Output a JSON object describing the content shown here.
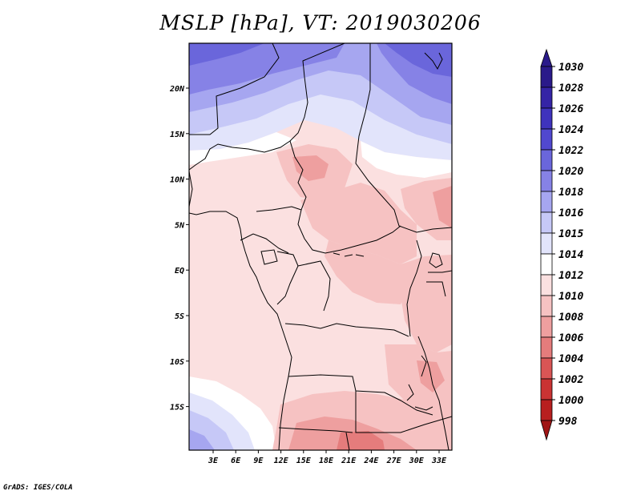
{
  "title": "MSLP [hPa], VT: 2019030206",
  "credit": "GrADS: IGES/COLA",
  "map": {
    "variable": "MSLP",
    "units": "hPa",
    "valid_time": "2019030206",
    "lon_labels": [
      "3E",
      "6E",
      "9E",
      "12E",
      "15E",
      "18E",
      "21E",
      "24E",
      "27E",
      "30E",
      "33E"
    ],
    "lat_labels": [
      "20N",
      "15N",
      "10N",
      "5N",
      "EQ",
      "5S",
      "10S",
      "15S"
    ]
  },
  "colorbar": {
    "levels": [
      {
        "label": "1030",
        "color": "#2a1a8a"
      },
      {
        "label": "1028",
        "color": "#3524a6"
      },
      {
        "label": "1026",
        "color": "#3f33bd"
      },
      {
        "label": "1024",
        "color": "#5148cf"
      },
      {
        "label": "1022",
        "color": "#6a66db"
      },
      {
        "label": "1020",
        "color": "#8682e6"
      },
      {
        "label": "1018",
        "color": "#a6a6f0"
      },
      {
        "label": "1016",
        "color": "#c6c8f7"
      },
      {
        "label": "1015",
        "color": "#e2e4fb"
      },
      {
        "label": "1014",
        "color": "#ffffff"
      },
      {
        "label": "1012",
        "color": "#fbe0e0"
      },
      {
        "label": "1010",
        "color": "#f6c2c2"
      },
      {
        "label": "1008",
        "color": "#ee9f9f"
      },
      {
        "label": "1006",
        "color": "#e57c7c"
      },
      {
        "label": "1004",
        "color": "#d95555"
      },
      {
        "label": "1002",
        "color": "#ca3333"
      },
      {
        "label": "1000",
        "color": "#b81f1f"
      },
      {
        "label": "998",
        "color": "#a01515"
      }
    ],
    "top_arrow_color": "#2a1a8a",
    "bottom_arrow_color": "#a01515"
  }
}
